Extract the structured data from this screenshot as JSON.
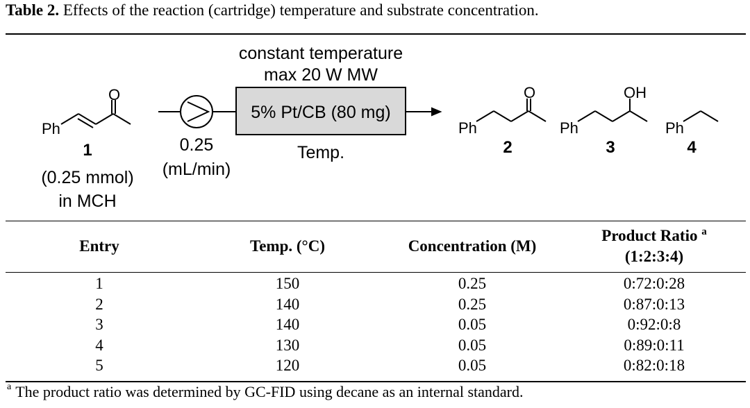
{
  "caption": {
    "label": "Table 2.",
    "text": " Effects of the reaction (cartridge) temperature and substrate concentration."
  },
  "scheme": {
    "condition_line1": "constant temperature",
    "condition_line2": "max 20 W MW",
    "catalyst": "5% Pt/CB (80 mg)",
    "below_cartridge": "Temp.",
    "flow_rate_value": "0.25",
    "flow_rate_unit": "(mL/min)",
    "substrate": {
      "number": "1",
      "amount": "(0.25 mmol)",
      "solvent": "in MCH",
      "ph_label": "Ph",
      "o_label": "O"
    },
    "products": [
      {
        "number": "2",
        "ph_label": "Ph",
        "heteroatom": "O"
      },
      {
        "number": "3",
        "ph_label": "Ph",
        "heteroatom": "OH"
      },
      {
        "number": "4",
        "ph_label": "Ph"
      }
    ]
  },
  "table": {
    "headers": {
      "entry": "Entry",
      "temp": "Temp. (°C)",
      "concentration": "Concentration (M)",
      "ratio_line1": "Product Ratio",
      "ratio_sup": "a",
      "ratio_line2": "(1:2:3:4)"
    },
    "rows": [
      {
        "entry": "1",
        "temp": "150",
        "concentration": "0.25",
        "ratio": "0:72:0:28"
      },
      {
        "entry": "2",
        "temp": "140",
        "concentration": "0.25",
        "ratio": "0:87:0:13"
      },
      {
        "entry": "3",
        "temp": "140",
        "concentration": "0.05",
        "ratio": "0:92:0:8"
      },
      {
        "entry": "4",
        "temp": "130",
        "concentration": "0.05",
        "ratio": "0:89:0:11"
      },
      {
        "entry": "5",
        "temp": "120",
        "concentration": "0.05",
        "ratio": "0:82:0:18"
      }
    ]
  },
  "footnote": {
    "marker": "a",
    "text": "The product ratio was determined by GC-FID using decane as an internal standard."
  }
}
